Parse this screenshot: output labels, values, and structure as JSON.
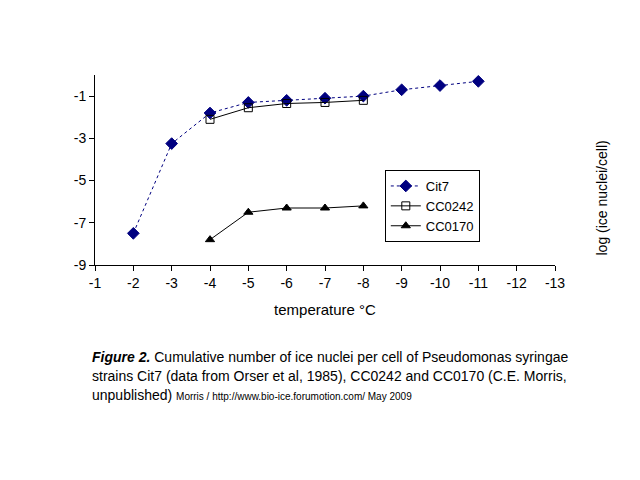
{
  "chart_data": {
    "type": "line",
    "x_label": "temperature °C",
    "y_label": "log (ice nuclei/cell)",
    "xlim": [
      -1,
      -13
    ],
    "xticks": [
      -1,
      -2,
      -3,
      -4,
      -5,
      -6,
      -7,
      -8,
      -9,
      -10,
      -11,
      -12,
      -13
    ],
    "ylim": [
      -9,
      0
    ],
    "yticks": [
      -9,
      -7,
      -5,
      -3,
      -1
    ],
    "grid": false,
    "legend": "right",
    "series": [
      {
        "name": "Cit7",
        "color": "#000080",
        "marker": "diamond",
        "line_style": "dot",
        "x": [
          -2,
          -3,
          -4,
          -5,
          -6,
          -7,
          -8,
          -9,
          -10,
          -11
        ],
        "values": [
          -7.5,
          -3.25,
          -1.8,
          -1.3,
          -1.2,
          -1.1,
          -1.0,
          -0.7,
          -0.5,
          -0.3
        ]
      },
      {
        "name": "CC0242",
        "color": "#000000",
        "marker": "square-open",
        "line_style": "solid",
        "x": [
          -4,
          -5,
          -6,
          -7,
          -8
        ],
        "values": [
          -2.1,
          -1.55,
          -1.35,
          -1.3,
          -1.2
        ]
      },
      {
        "name": "CC0170",
        "color": "#000000",
        "marker": "triangle-up",
        "line_style": "solid",
        "x": [
          -4,
          -5,
          -6,
          -7,
          -8
        ],
        "values": [
          -7.8,
          -6.5,
          -6.3,
          -6.3,
          -6.2
        ]
      }
    ],
    "caption": {
      "label": "Figure 2.",
      "text": "Cumulative number of ice nuclei per cell of Pseudomonas syringae strains Cit7 (data from Orser et al, 1985), CC0242 and CC0170 (C.E. Morris, unpublished)"
    },
    "source": "Morris / http://www.bio-ice.forumotion.com/ May 2009"
  }
}
